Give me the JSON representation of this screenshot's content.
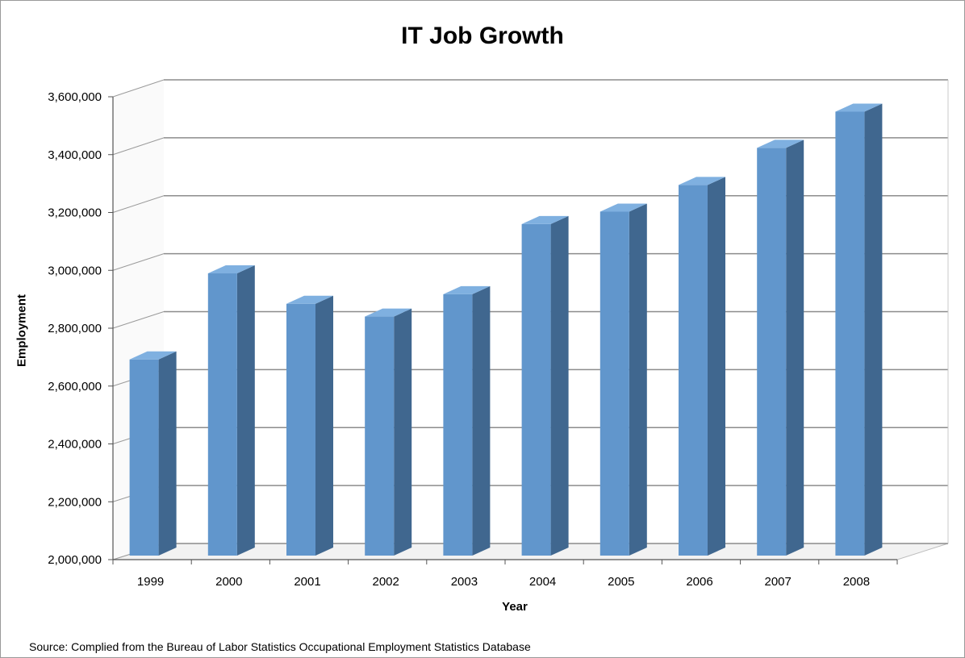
{
  "chart_data": {
    "type": "bar",
    "title": "IT Job Growth",
    "xlabel": "Year",
    "ylabel": "Employment",
    "categories": [
      "1999",
      "2000",
      "2001",
      "2002",
      "2003",
      "2004",
      "2005",
      "2006",
      "2007",
      "2008"
    ],
    "values": [
      2688000,
      2985000,
      2880000,
      2836000,
      2913000,
      3155000,
      3198000,
      3290000,
      3418000,
      3543000
    ],
    "ylim": [
      2000000,
      3600000
    ],
    "yticks": [
      2000000,
      2200000,
      2400000,
      2600000,
      2800000,
      3000000,
      3200000,
      3400000,
      3600000
    ],
    "ytick_labels": [
      "2,000,000",
      "2,200,000",
      "2,400,000",
      "2,600,000",
      "2,800,000",
      "3,000,000",
      "3,200,000",
      "3,400,000",
      "3,600,000"
    ],
    "grid": true,
    "style": "3d-column",
    "colors": {
      "bar_front": "#6196cc",
      "bar_side": "#40678f",
      "bar_top": "#7fb0e0",
      "grid": "#8c8c8c"
    }
  },
  "source_note": "Source: Complied from the Bureau of Labor Statistics Occupational Employment Statistics Database"
}
